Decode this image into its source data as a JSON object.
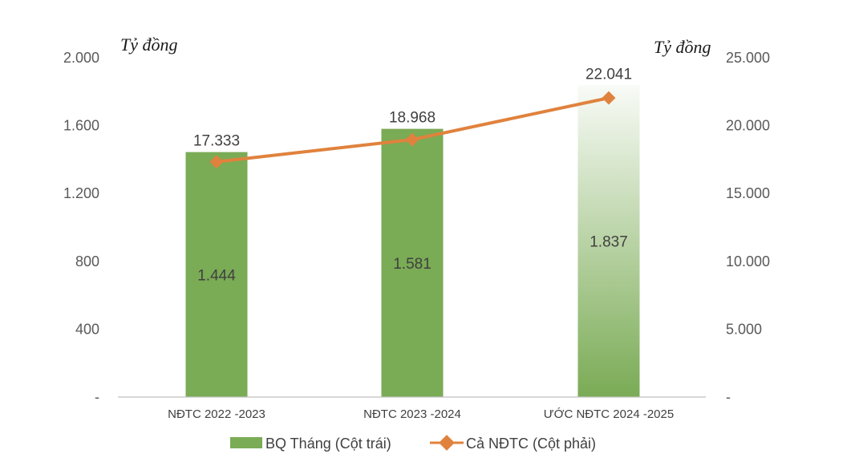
{
  "chart_data": {
    "type": "bar+line",
    "categories": [
      "NĐTC 2022 -2023",
      "NĐTC 2023 -2024",
      "ƯỚC NĐTC 2024 -2025"
    ],
    "series": [
      {
        "name": "BQ Tháng (Cột trái)",
        "type": "bar",
        "axis": "left",
        "values": [
          1444,
          1581,
          1837
        ],
        "labels": [
          "1.444",
          "1.581",
          "1.837"
        ],
        "color": "#7aab55"
      },
      {
        "name": "Cả NĐTC (Cột phải)",
        "type": "line",
        "axis": "right",
        "values": [
          17333,
          18968,
          22041
        ],
        "labels": [
          "17.333",
          "18.968",
          "22.041"
        ],
        "color": "#e0823d"
      }
    ],
    "y_left": {
      "unit": "Tỷ đồng",
      "range": [
        0,
        2000
      ],
      "ticks": [
        0,
        400,
        800,
        1200,
        1600,
        2000
      ],
      "tick_labels": [
        "-",
        "400",
        "800",
        "1.200",
        "1.600",
        "2.000"
      ]
    },
    "y_right": {
      "unit": "Tỷ đồng",
      "range": [
        0,
        25000
      ],
      "ticks": [
        0,
        5000,
        10000,
        15000,
        20000,
        25000
      ],
      "tick_labels": [
        "-",
        "5.000",
        "10.000",
        "15.000",
        "20.000",
        "25.000"
      ]
    },
    "legend": {
      "position": "bottom",
      "entries": [
        "BQ Tháng (Cột trái)",
        "Cả NĐTC (Cột phải)"
      ]
    },
    "gridlines": false,
    "last_bar_style": "gradient"
  }
}
